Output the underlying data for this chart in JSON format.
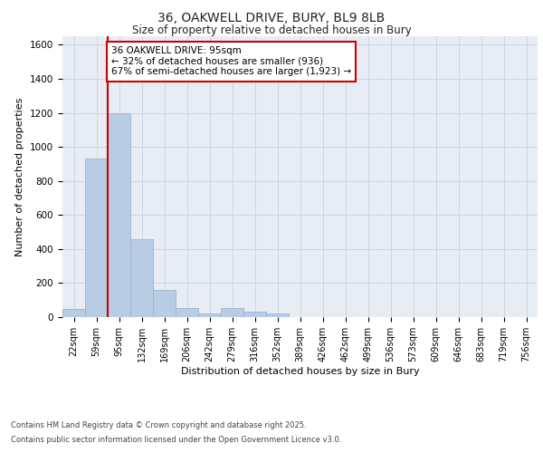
{
  "title1": "36, OAKWELL DRIVE, BURY, BL9 8LB",
  "title2": "Size of property relative to detached houses in Bury",
  "xlabel": "Distribution of detached houses by size in Bury",
  "ylabel": "Number of detached properties",
  "bins": [
    "22sqm",
    "59sqm",
    "95sqm",
    "132sqm",
    "169sqm",
    "206sqm",
    "242sqm",
    "279sqm",
    "316sqm",
    "352sqm",
    "389sqm",
    "426sqm",
    "462sqm",
    "499sqm",
    "536sqm",
    "573sqm",
    "609sqm",
    "646sqm",
    "683sqm",
    "719sqm",
    "756sqm"
  ],
  "values": [
    50,
    930,
    1200,
    460,
    160,
    55,
    20,
    55,
    30,
    20,
    0,
    0,
    0,
    0,
    0,
    0,
    0,
    0,
    0,
    0,
    0
  ],
  "bar_color": "#b8cce4",
  "bar_edge_color": "#9ab5d0",
  "vline_color": "#cc0000",
  "vline_index": 2,
  "ylim": [
    0,
    1650
  ],
  "yticks": [
    0,
    200,
    400,
    600,
    800,
    1000,
    1200,
    1400,
    1600
  ],
  "annotation_title": "36 OAKWELL DRIVE: 95sqm",
  "annotation_line1": "← 32% of detached houses are smaller (936)",
  "annotation_line2": "67% of semi-detached houses are larger (1,923) →",
  "annotation_box_facecolor": "#ffffff",
  "annotation_box_edgecolor": "#cc0000",
  "grid_color": "#cdd5e0",
  "plot_bg_color": "#e8edf5",
  "footer1": "Contains HM Land Registry data © Crown copyright and database right 2025.",
  "footer2": "Contains public sector information licensed under the Open Government Licence v3.0."
}
